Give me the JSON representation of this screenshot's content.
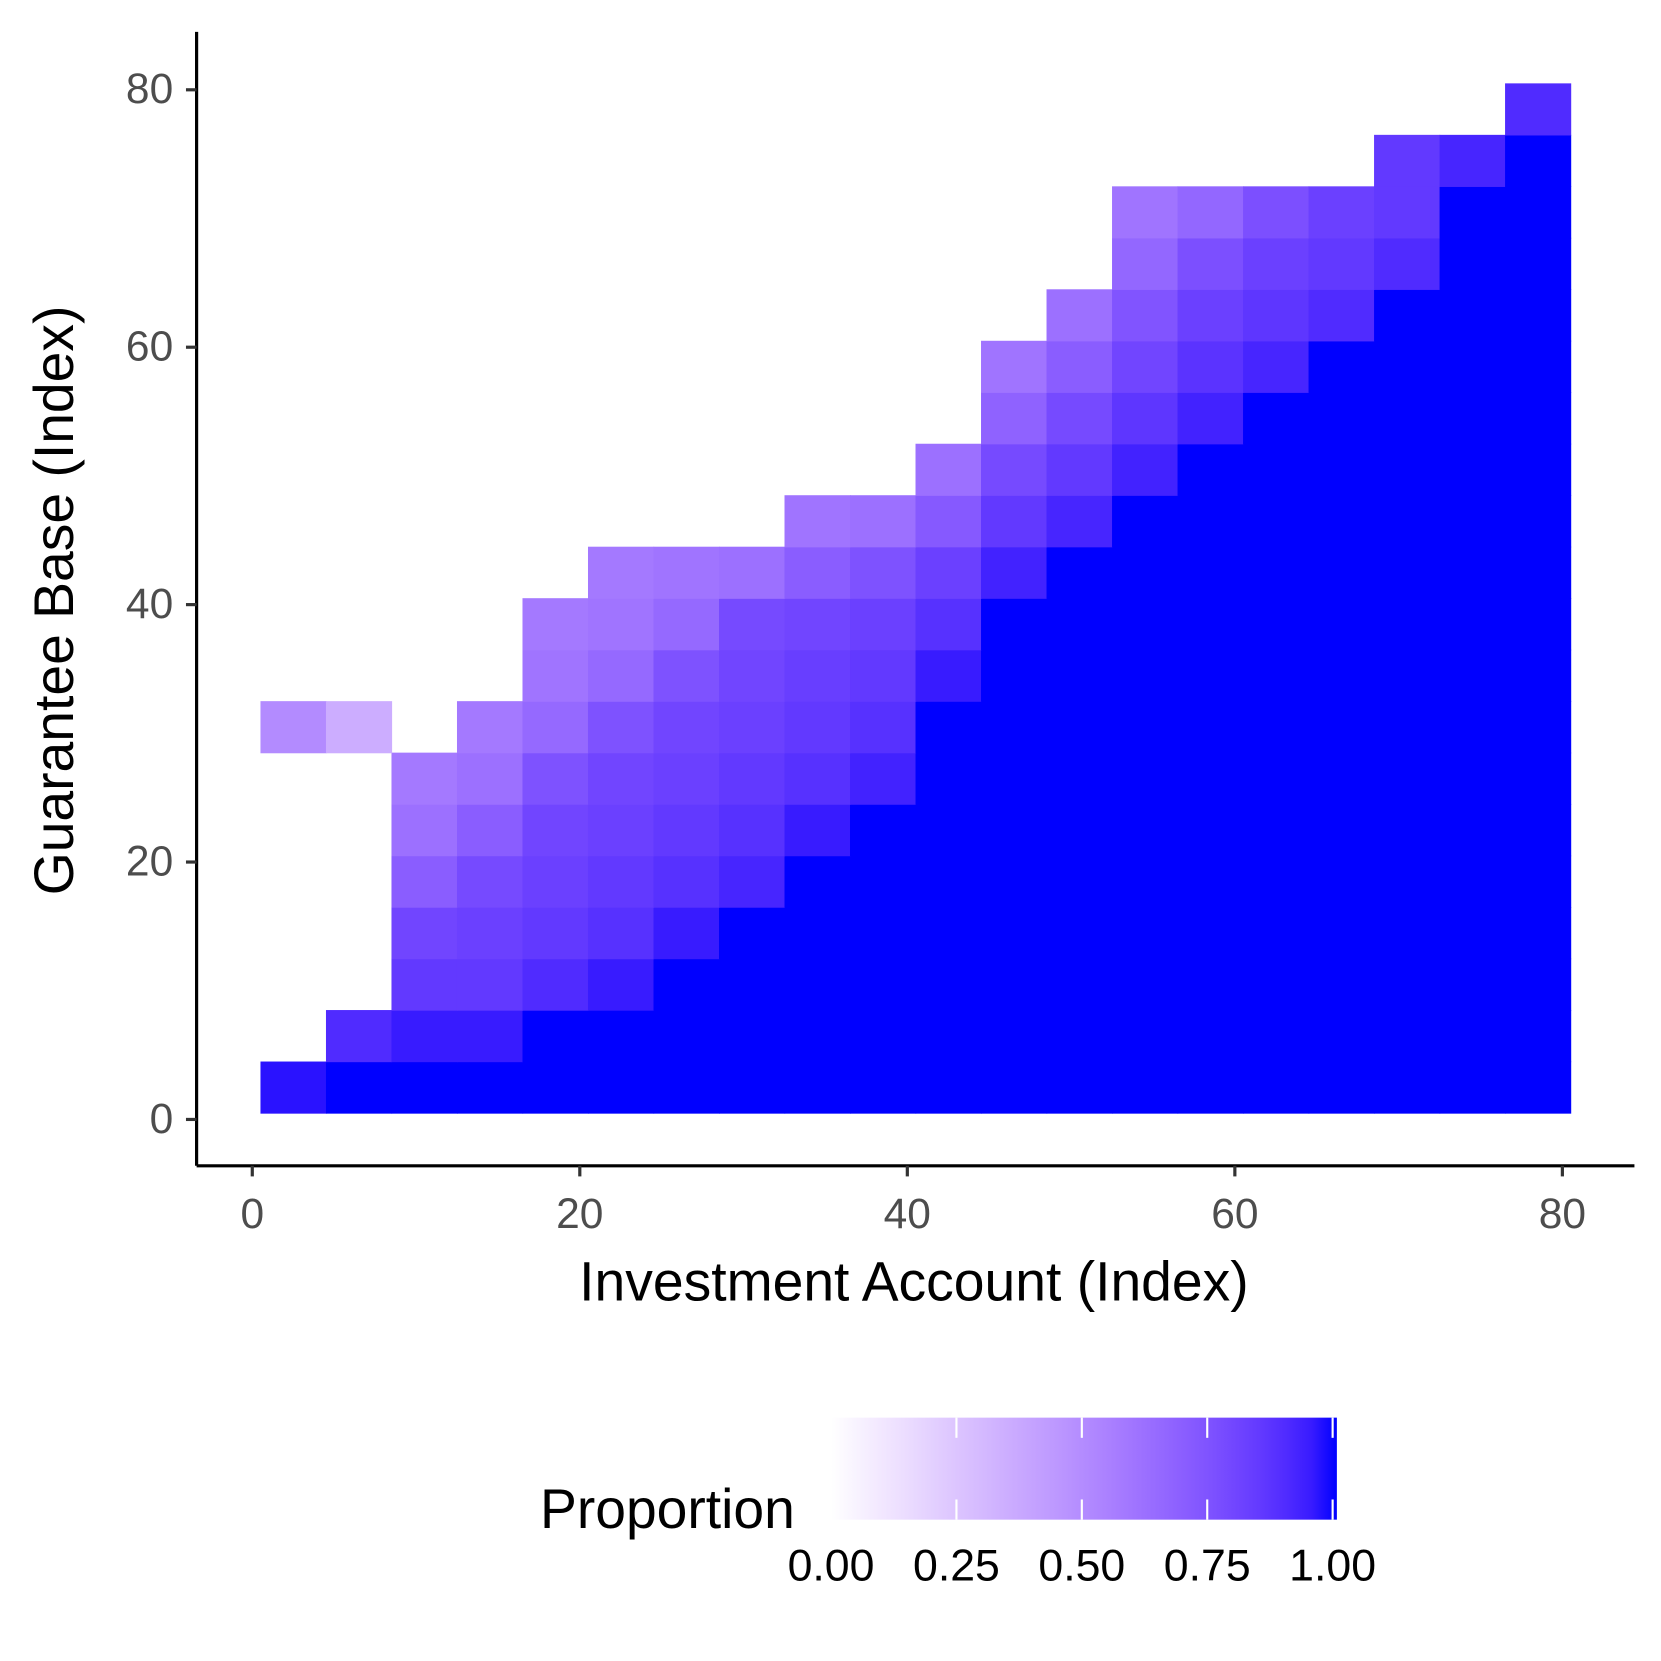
{
  "chart_data": {
    "type": "heatmap",
    "xlabel": "Investment Account (Index)",
    "ylabel": "Guarantee Base (Index)",
    "x": [
      2.5,
      6.5,
      10.5,
      14.5,
      18.5,
      22.5,
      26.5,
      30.5,
      34.5,
      38.5,
      42.5,
      46.5,
      50.5,
      54.5,
      58.5,
      62.5,
      66.5,
      70.5,
      74.5,
      78.5
    ],
    "y": [
      2.5,
      6.5,
      10.5,
      14.5,
      18.5,
      22.5,
      26.5,
      30.5,
      34.5,
      38.5,
      42.5,
      46.5,
      50.5,
      54.5,
      58.5,
      62.5,
      66.5,
      70.5,
      74.5,
      78.5
    ],
    "z": [
      [
        0.97,
        1,
        1,
        1,
        1,
        1,
        1,
        1,
        1,
        1,
        1,
        1,
        1,
        1,
        1,
        1,
        1,
        1,
        1,
        1
      ],
      [
        null,
        0.9,
        0.95,
        0.95,
        1,
        1,
        1,
        1,
        1,
        1,
        1,
        1,
        1,
        1,
        1,
        1,
        1,
        1,
        1,
        1
      ],
      [
        null,
        null,
        0.85,
        0.85,
        0.9,
        0.95,
        1,
        1,
        1,
        1,
        1,
        1,
        1,
        1,
        1,
        1,
        1,
        1,
        1,
        1
      ],
      [
        null,
        null,
        0.8,
        0.82,
        0.85,
        0.88,
        0.95,
        1,
        1,
        1,
        1,
        1,
        1,
        1,
        1,
        1,
        1,
        1,
        1,
        1
      ],
      [
        null,
        null,
        0.7,
        0.78,
        0.82,
        0.85,
        0.88,
        0.92,
        1,
        1,
        1,
        1,
        1,
        1,
        1,
        1,
        1,
        1,
        1,
        1
      ],
      [
        null,
        null,
        0.62,
        0.7,
        0.8,
        0.82,
        0.85,
        0.88,
        0.95,
        1,
        1,
        1,
        1,
        1,
        1,
        1,
        1,
        1,
        1,
        1
      ],
      [
        null,
        null,
        0.58,
        0.62,
        0.75,
        0.8,
        0.82,
        0.85,
        0.88,
        0.93,
        1,
        1,
        1,
        1,
        1,
        1,
        1,
        1,
        1,
        1
      ],
      [
        0.5,
        0.35,
        null,
        0.58,
        0.65,
        0.75,
        0.8,
        0.82,
        0.85,
        0.88,
        1,
        1,
        1,
        1,
        1,
        1,
        1,
        1,
        1,
        1
      ],
      [
        null,
        null,
        null,
        null,
        0.6,
        0.65,
        0.75,
        0.8,
        0.83,
        0.85,
        0.95,
        1,
        1,
        1,
        1,
        1,
        1,
        1,
        1,
        1
      ],
      [
        null,
        null,
        null,
        null,
        0.58,
        0.6,
        0.65,
        0.78,
        0.8,
        0.82,
        0.88,
        1,
        1,
        1,
        1,
        1,
        1,
        1,
        1,
        1
      ],
      [
        null,
        null,
        null,
        null,
        null,
        0.58,
        0.6,
        0.62,
        0.7,
        0.75,
        0.82,
        0.93,
        1,
        1,
        1,
        1,
        1,
        1,
        1,
        1
      ],
      [
        null,
        null,
        null,
        null,
        null,
        null,
        null,
        null,
        0.6,
        0.62,
        0.72,
        0.85,
        0.92,
        1,
        1,
        1,
        1,
        1,
        1,
        1
      ],
      [
        null,
        null,
        null,
        null,
        null,
        null,
        null,
        null,
        null,
        null,
        0.62,
        0.78,
        0.85,
        0.93,
        1,
        1,
        1,
        1,
        1,
        1
      ],
      [
        null,
        null,
        null,
        null,
        null,
        null,
        null,
        null,
        null,
        null,
        null,
        0.68,
        0.78,
        0.86,
        0.93,
        1,
        1,
        1,
        1,
        1
      ],
      [
        null,
        null,
        null,
        null,
        null,
        null,
        null,
        null,
        null,
        null,
        null,
        0.6,
        0.7,
        0.8,
        0.87,
        0.92,
        1,
        1,
        1,
        1
      ],
      [
        null,
        null,
        null,
        null,
        null,
        null,
        null,
        null,
        null,
        null,
        null,
        null,
        0.62,
        0.74,
        0.82,
        0.86,
        0.9,
        1,
        1,
        1
      ],
      [
        null,
        null,
        null,
        null,
        null,
        null,
        null,
        null,
        null,
        null,
        null,
        null,
        null,
        0.66,
        0.76,
        0.82,
        0.85,
        0.9,
        1,
        1
      ],
      [
        null,
        null,
        null,
        null,
        null,
        null,
        null,
        null,
        null,
        null,
        null,
        null,
        null,
        0.6,
        0.66,
        0.76,
        0.82,
        0.85,
        1,
        1
      ],
      [
        null,
        null,
        null,
        null,
        null,
        null,
        null,
        null,
        null,
        null,
        null,
        null,
        null,
        null,
        null,
        null,
        null,
        0.85,
        0.92,
        1
      ],
      [
        null,
        null,
        null,
        null,
        null,
        null,
        null,
        null,
        null,
        null,
        null,
        null,
        null,
        null,
        null,
        null,
        null,
        null,
        null,
        0.9
      ]
    ],
    "xlim": [
      -3.4,
      84.4
    ],
    "xticks": [
      0,
      20,
      40,
      60,
      80
    ],
    "ylim": [
      -3.6,
      84.5
    ],
    "yticks": [
      0,
      20,
      40,
      60,
      80
    ],
    "legend_title": "Proportion",
    "colors": [
      "#ffffff",
      "#0000ff"
    ],
    "clim": [
      0,
      1
    ],
    "cticks": [
      {
        "value": 0,
        "label": "0.00"
      },
      {
        "value": 0.25,
        "label": "0.25"
      },
      {
        "value": 0.5,
        "label": "0.50"
      },
      {
        "value": 0.75,
        "label": "0.75"
      },
      {
        "value": 1,
        "label": "1.00"
      }
    ]
  }
}
